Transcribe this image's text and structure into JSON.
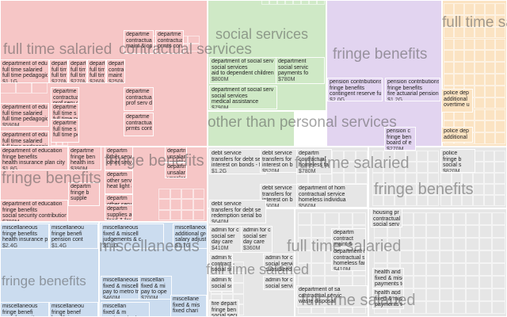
{
  "chart_data": {
    "type": "treemap",
    "units": "USD",
    "colors": {
      "pink": "#f6c6c6",
      "green": "#cfe9c6",
      "purple": "#e2d4f0",
      "orange": "#fbe3c2",
      "blue": "#cbdcef",
      "gray": "#e6e6e6",
      "white": "#ffffff"
    },
    "group_labels": [
      "full time salaried",
      "contractual services",
      "social services",
      "fringe benefits",
      "full time salaried",
      "other than personal services",
      "fringe benefits",
      "fringe benefits",
      "full time salaried",
      "miscellaneous",
      "fringe benefits",
      "fringe benefits",
      "full time salaried",
      "full time salaried",
      "full time salaried"
    ],
    "cells": [
      {
        "lines": [
          "department of education",
          "full time salaried",
          "full time pedagogical"
        ],
        "value": "$1.1G"
      },
      {
        "lines": [
          "department",
          "full time sal",
          "full time pe"
        ],
        "value": "$270M"
      },
      {
        "lines": [
          "department",
          "full time sal",
          "full time pe"
        ],
        "value": "$270M"
      },
      {
        "lines": [
          "department",
          "full time sal",
          "full time pe"
        ],
        "value": "$260M"
      },
      {
        "lines": [
          "department",
          "contractual s",
          "maint & oper"
        ],
        "value": "$250M"
      },
      {
        "lines": [
          "departme",
          "contractua",
          "maint & op"
        ],
        "value": ""
      },
      {
        "lines": [
          "departme",
          "contractua",
          "prmts contra"
        ],
        "value": ""
      },
      {
        "lines": [
          "departme",
          "contractua",
          "prof serv di"
        ],
        "value": ""
      },
      {
        "lines": [
          "departme",
          "contractua",
          "prof serv di"
        ],
        "value": ""
      },
      {
        "lines": [
          "departme",
          "contractua",
          "prmts contra"
        ],
        "value": ""
      },
      {
        "lines": [
          "department of education",
          "full time salaried",
          "full time pedagogical"
        ],
        "value": "$590M"
      },
      {
        "lines": [
          "department of education",
          "full time salaried",
          "full time pedagogical"
        ],
        "value": ""
      },
      {
        "lines": [
          "departme",
          "full time s",
          "full time pe"
        ],
        "value": ""
      },
      {
        "lines": [
          "departme",
          "full time s",
          "full time pe"
        ],
        "value": ""
      },
      {
        "lines": [
          "department of education",
          "fringe benefits",
          "health insurance plan city er"
        ],
        "value": "$1.8G"
      },
      {
        "lines": [
          "departme",
          "fringe ben",
          "health ins"
        ],
        "value": "$390M"
      },
      {
        "lines": [
          "departm",
          "other serv",
          "other servic"
        ],
        "value": ""
      },
      {
        "lines": [
          "departm",
          "other serv",
          "heat light &"
        ],
        "value": ""
      },
      {
        "lines": [
          "departm",
          "unsalar",
          "unsalar"
        ],
        "value": ""
      },
      {
        "lines": [
          "departm",
          "unsalar",
          "unsalar"
        ],
        "value": ""
      },
      {
        "lines": [
          "departm",
          "other serv",
          "food & fora"
        ],
        "value": ""
      },
      {
        "lines": [
          "departm",
          "supplies an",
          "food & fora"
        ],
        "value": ""
      },
      {
        "lines": [
          "departm",
          "fringe b",
          "supple"
        ],
        "value": ""
      },
      {
        "lines": [
          "department of education",
          "fringe benefits",
          "social security contributions"
        ],
        "value": "$780M"
      },
      {
        "lines": [
          "department of social serv",
          "social services",
          "aid to dependent children"
        ],
        "value": "$800M"
      },
      {
        "lines": [
          "department",
          "social servic",
          "payments fo"
        ],
        "value": "$780M"
      },
      {
        "lines": [
          "department of social serv",
          "social services",
          "medical assistance"
        ],
        "value": "$790M"
      },
      {
        "lines": [
          "pension contributions",
          "fringe benefits",
          "contingent reserve fund"
        ],
        "value": "$2.0G"
      },
      {
        "lines": [
          "pension contributions",
          "fringe benefits",
          "fire actuarial pension fu"
        ],
        "value": "$1.2G"
      },
      {
        "lines": [
          "police dep",
          "additional",
          "overtime u"
        ],
        "value": ""
      },
      {
        "lines": [
          "police dep",
          "additional"
        ],
        "value": ""
      },
      {
        "lines": [
          "pension c",
          "fringe ben",
          "board of e"
        ],
        "value": "$270M"
      },
      {
        "lines": [
          "debt service",
          "transfers for debt se",
          "interest on bonds - f"
        ],
        "value": "$1.2G"
      },
      {
        "lines": [
          "debt service",
          "transfers for",
          "interest on b"
        ],
        "value": "$520M"
      },
      {
        "lines": [
          "debt service",
          "transfers for",
          "interest on b"
        ],
        "value": "$500M"
      },
      {
        "lines": [
          "debt service",
          "transfers for debt se",
          "redemption serial bo"
        ],
        "value": "$640M"
      },
      {
        "lines": [
          "departm",
          "contractual",
          "homeless fa"
        ],
        "value": "$780M"
      },
      {
        "lines": [
          "department of hom",
          "contractual service",
          "homeless individua"
        ],
        "value": "$560M"
      },
      {
        "lines": [
          "police",
          "fringe b",
          "social s"
        ],
        "value": "$820M"
      },
      {
        "lines": [
          "housing pr",
          "contractual",
          "social serv"
        ],
        "value": ""
      },
      {
        "lines": [
          "admin for c",
          "social ser",
          "day care"
        ],
        "value": "$410M"
      },
      {
        "lines": [
          "admin for c",
          "social ser",
          "day care"
        ],
        "value": "$360M"
      },
      {
        "lines": [
          "admin fo",
          "contractu",
          "social se"
        ],
        "value": ""
      },
      {
        "lines": [
          "admin fo",
          "social se"
        ],
        "value": ""
      },
      {
        "lines": [
          "admin for c",
          "social servi",
          "subsidized"
        ],
        "value": ""
      },
      {
        "lines": [
          "admin for c",
          "social servi"
        ],
        "value": ""
      },
      {
        "lines": [
          "departm",
          "contract",
          "maint &"
        ],
        "value": ""
      },
      {
        "lines": [
          "department of h",
          "contractual ser",
          "homeless famil"
        ],
        "value": "$410M"
      },
      {
        "lines": [
          "health and h",
          "fixed & misc",
          "payments to"
        ],
        "value": ""
      },
      {
        "lines": [
          "health and h",
          "fixed & misc",
          "payments to"
        ],
        "value": ""
      },
      {
        "lines": [
          "department of sa",
          "contractual servic",
          "waste disposal"
        ],
        "value": ""
      },
      {
        "lines": [
          "fire depart",
          "fringe ben",
          "social secu"
        ],
        "value": ""
      },
      {
        "lines": [
          "miscellaneous",
          "fringe benefits",
          "health insurance plan cit"
        ],
        "value": "$2.4G"
      },
      {
        "lines": [
          "miscellaneou",
          "fringe benefi",
          "pension cont"
        ],
        "value": "$1.4G"
      },
      {
        "lines": [
          "miscellaneous",
          "fixed & miscell",
          "judgements & c"
        ],
        "value": "$1.1G"
      },
      {
        "lines": [
          "miscellaneous",
          "additional gross",
          "salary adjustmen"
        ],
        "value": "$1.7G"
      },
      {
        "lines": [
          "miscellaneous",
          "fixed & miscell",
          "pay to metro tr"
        ],
        "value": "$460M"
      },
      {
        "lines": [
          "miscellan",
          "fixed & mi",
          "pay to ope"
        ],
        "value": "$700M"
      },
      {
        "lines": [
          "miscellane",
          "fixed & mis",
          "fixed chari"
        ],
        "value": ""
      },
      {
        "lines": [
          "miscellaneous",
          "fringe benefi",
          "social security"
        ],
        "value": ""
      },
      {
        "lines": [
          "miscellaneou",
          "fringe benef",
          "health insur"
        ],
        "value": ""
      },
      {
        "lines": [
          "miscellan",
          "fixed & m",
          "pay to metro tr"
        ],
        "value": ""
      }
    ]
  }
}
